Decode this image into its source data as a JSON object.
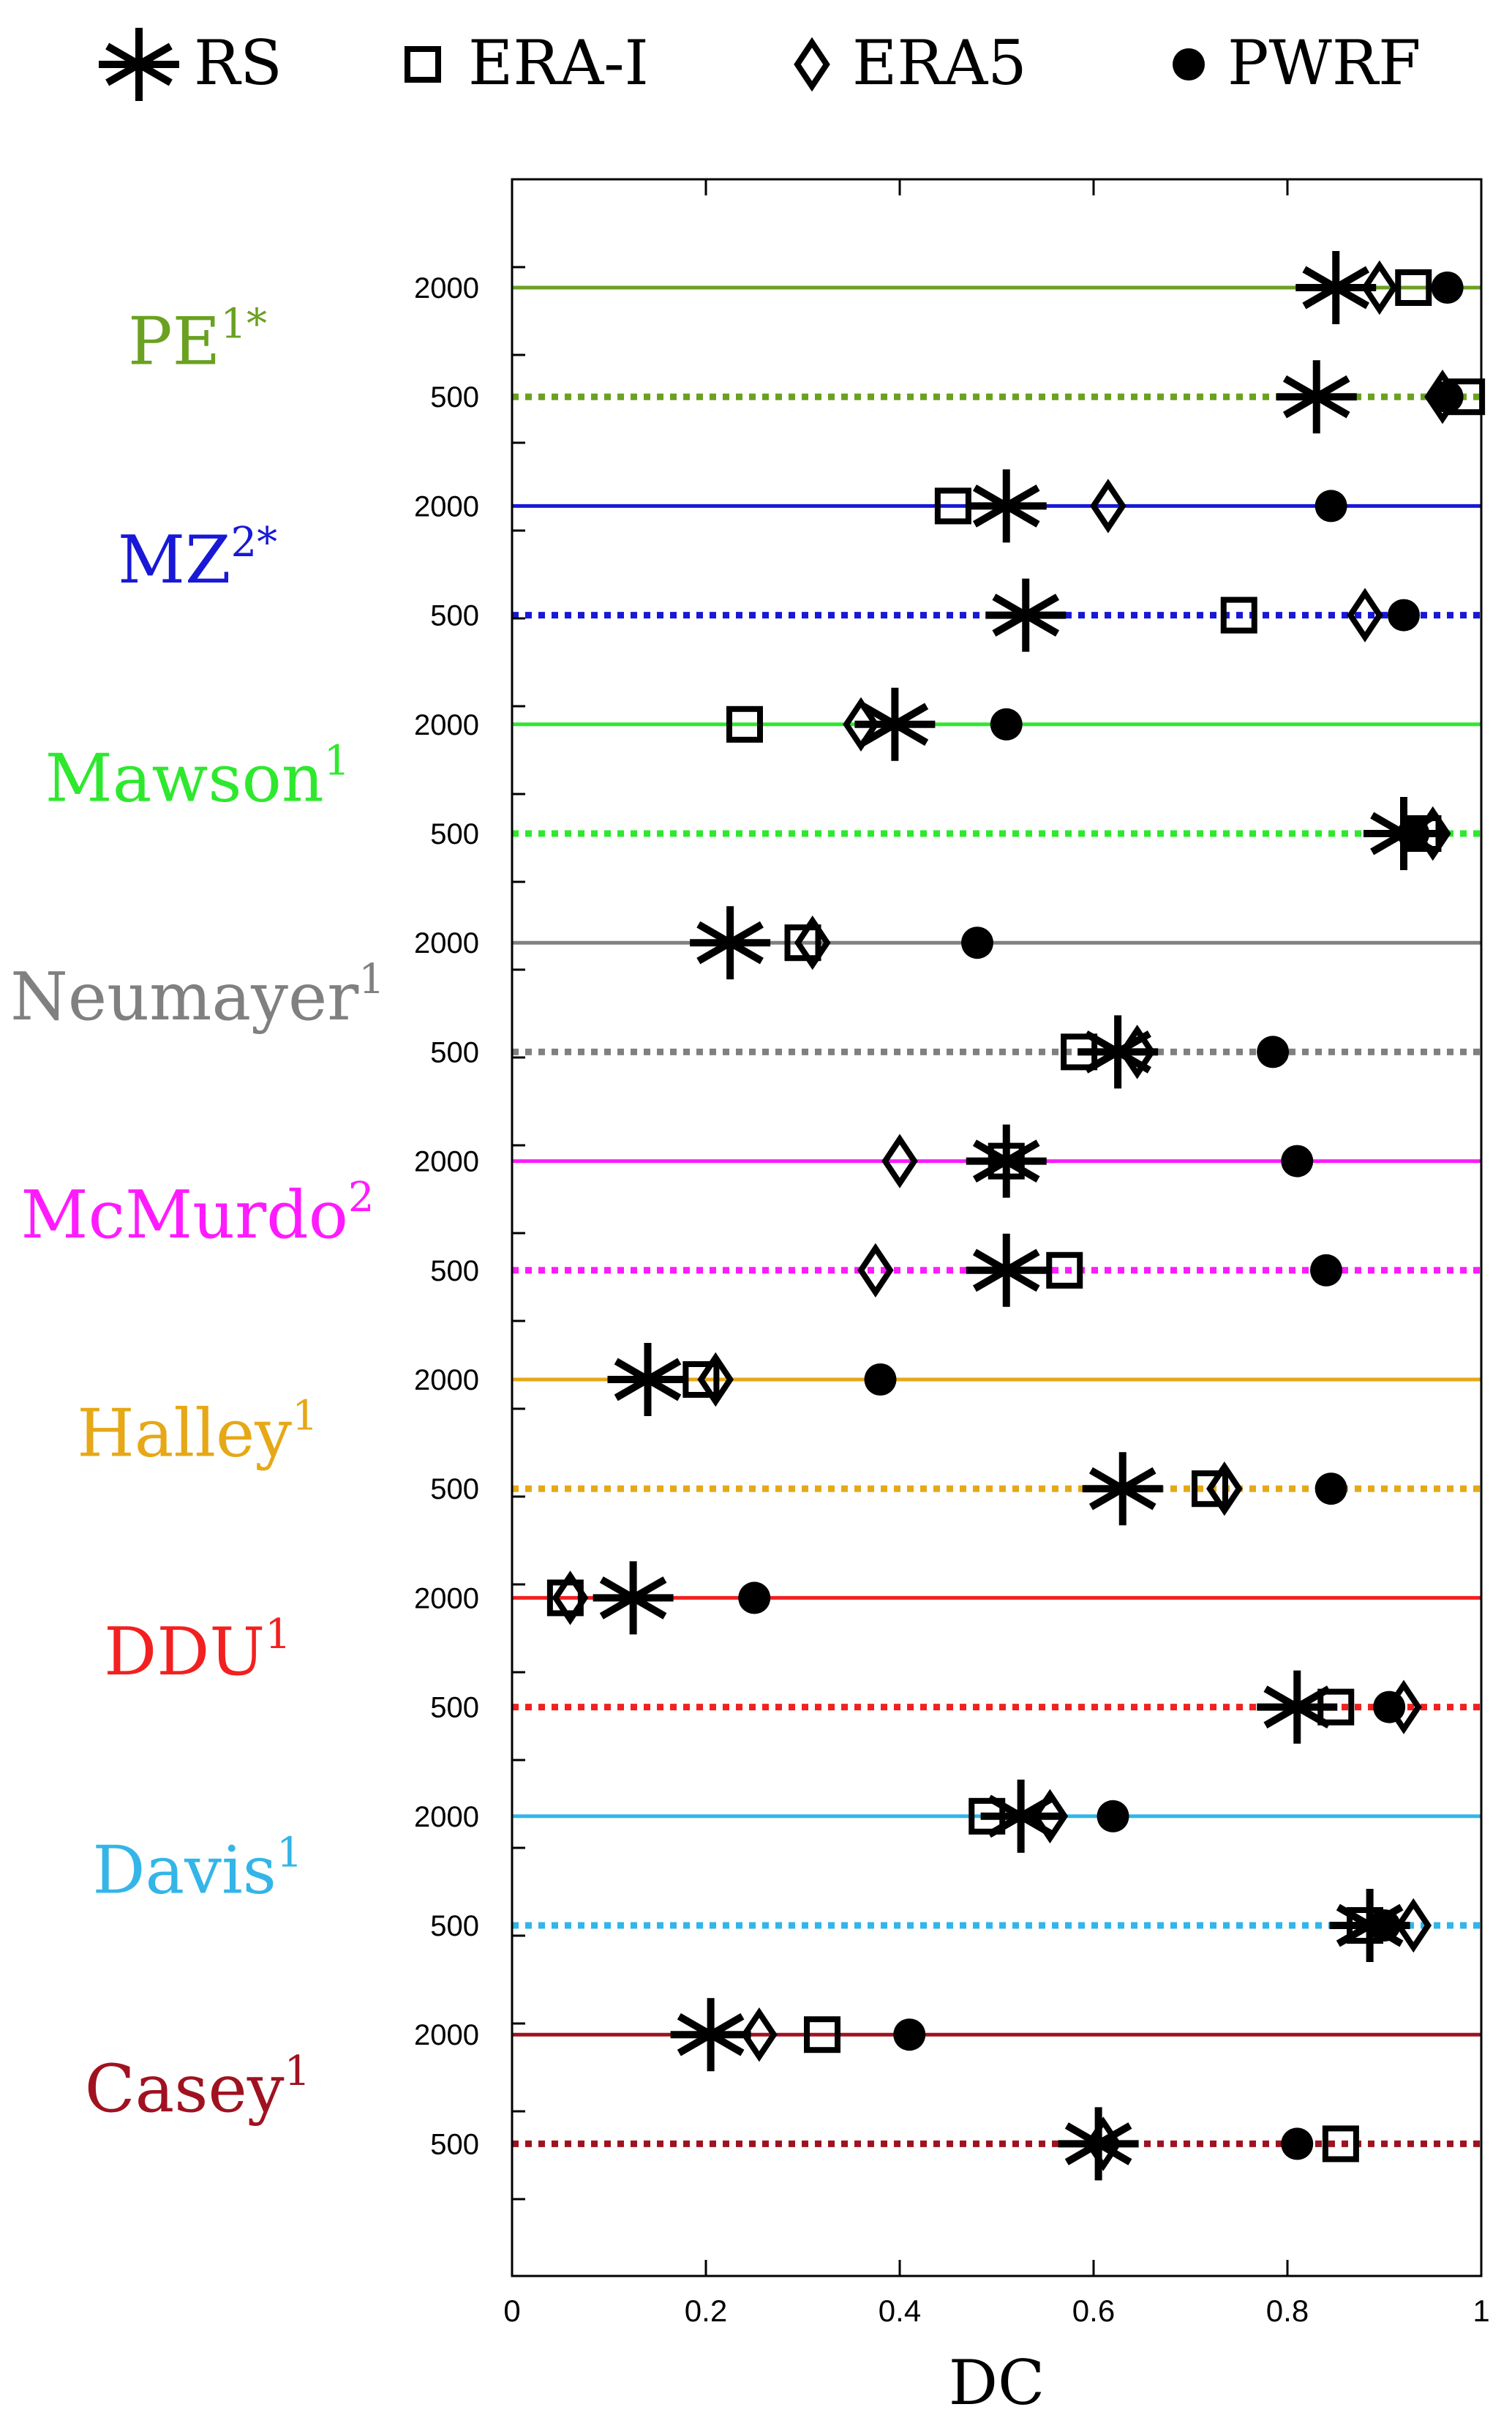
{
  "chart_data": {
    "type": "scatter",
    "xlabel": "DC",
    "xlim": [
      0,
      1
    ],
    "x_ticks": [
      "0",
      "0.2",
      "0.4",
      "0.6",
      "0.8",
      "1"
    ],
    "grid": false,
    "legend_placement": "top",
    "series": [
      {
        "name": "RS",
        "marker": "asterisk"
      },
      {
        "name": "ERA-I",
        "marker": "square"
      },
      {
        "name": "ERA5",
        "marker": "diamond"
      },
      {
        "name": "PWRF",
        "marker": "filled-circle"
      }
    ],
    "stations": [
      {
        "name": "PE",
        "sup": "1*",
        "color": "#6aa121",
        "rows": [
          {
            "level": "2000",
            "line": "solid",
            "RS": 0.85,
            "ERA-I": 0.93,
            "ERA5": 0.895,
            "PWRF": 0.965
          },
          {
            "level": "500",
            "line": "dotted",
            "RS": 0.83,
            "ERA-I": 0.985,
            "ERA5": 0.96,
            "PWRF": 0.965
          }
        ]
      },
      {
        "name": "MZ",
        "sup": "2*",
        "color": "#1818d6",
        "rows": [
          {
            "level": "2000",
            "line": "solid",
            "RS": 0.51,
            "ERA-I": 0.455,
            "ERA5": 0.615,
            "PWRF": 0.845
          },
          {
            "level": "500",
            "line": "dotted",
            "RS": 0.53,
            "ERA-I": 0.75,
            "ERA5": 0.88,
            "PWRF": 0.92
          }
        ]
      },
      {
        "name": "Mawson",
        "sup": "1",
        "color": "#2ee82e",
        "rows": [
          {
            "level": "2000",
            "line": "solid",
            "RS": 0.395,
            "ERA-I": 0.24,
            "ERA5": 0.36,
            "PWRF": 0.51
          },
          {
            "level": "500",
            "line": "dotted",
            "RS": 0.92,
            "ERA-I": 0.94,
            "ERA5": 0.95,
            "PWRF": 0.93
          }
        ]
      },
      {
        "name": "Neumayer",
        "sup": "1",
        "color": "#808080",
        "rows": [
          {
            "level": "2000",
            "line": "solid",
            "RS": 0.225,
            "ERA-I": 0.3,
            "ERA5": 0.31,
            "PWRF": 0.48
          },
          {
            "level": "500",
            "line": "dotted",
            "RS": 0.625,
            "ERA-I": 0.585,
            "ERA5": 0.645,
            "PWRF": 0.785
          }
        ]
      },
      {
        "name": "McMurdo",
        "sup": "2",
        "color": "#ff1aff",
        "rows": [
          {
            "level": "2000",
            "line": "solid",
            "RS": 0.51,
            "ERA-I": 0.51,
            "ERA5": 0.4,
            "PWRF": 0.81
          },
          {
            "level": "500",
            "line": "dotted",
            "RS": 0.51,
            "ERA-I": 0.57,
            "ERA5": 0.375,
            "PWRF": 0.84
          }
        ]
      },
      {
        "name": "Halley",
        "sup": "1",
        "color": "#e6a817",
        "rows": [
          {
            "level": "2000",
            "line": "solid",
            "RS": 0.14,
            "ERA-I": 0.195,
            "ERA5": 0.21,
            "PWRF": 0.38
          },
          {
            "level": "500",
            "line": "dotted",
            "RS": 0.63,
            "ERA-I": 0.72,
            "ERA5": 0.735,
            "PWRF": 0.845
          }
        ]
      },
      {
        "name": "DDU",
        "sup": "1",
        "color": "#f22020",
        "rows": [
          {
            "level": "2000",
            "line": "solid",
            "RS": 0.125,
            "ERA-I": 0.055,
            "ERA5": 0.06,
            "PWRF": 0.25
          },
          {
            "level": "500",
            "line": "dotted",
            "RS": 0.81,
            "ERA-I": 0.85,
            "ERA5": 0.92,
            "PWRF": 0.905
          }
        ]
      },
      {
        "name": "Davis",
        "sup": "1",
        "color": "#33b5e8",
        "rows": [
          {
            "level": "2000",
            "line": "solid",
            "RS": 0.525,
            "ERA-I": 0.49,
            "ERA5": 0.555,
            "PWRF": 0.62
          },
          {
            "level": "500",
            "line": "dotted",
            "RS": 0.885,
            "ERA-I": 0.88,
            "ERA5": 0.93,
            "PWRF": 0.9
          }
        ]
      },
      {
        "name": "Casey",
        "sup": "1",
        "color": "#a01220",
        "rows": [
          {
            "level": "2000",
            "line": "solid",
            "RS": 0.205,
            "ERA-I": 0.32,
            "ERA5": 0.255,
            "PWRF": 0.41
          },
          {
            "level": "500",
            "line": "dotted",
            "RS": 0.605,
            "ERA-I": 0.855,
            "ERA5": 0.61,
            "PWRF": 0.81
          }
        ]
      }
    ]
  }
}
